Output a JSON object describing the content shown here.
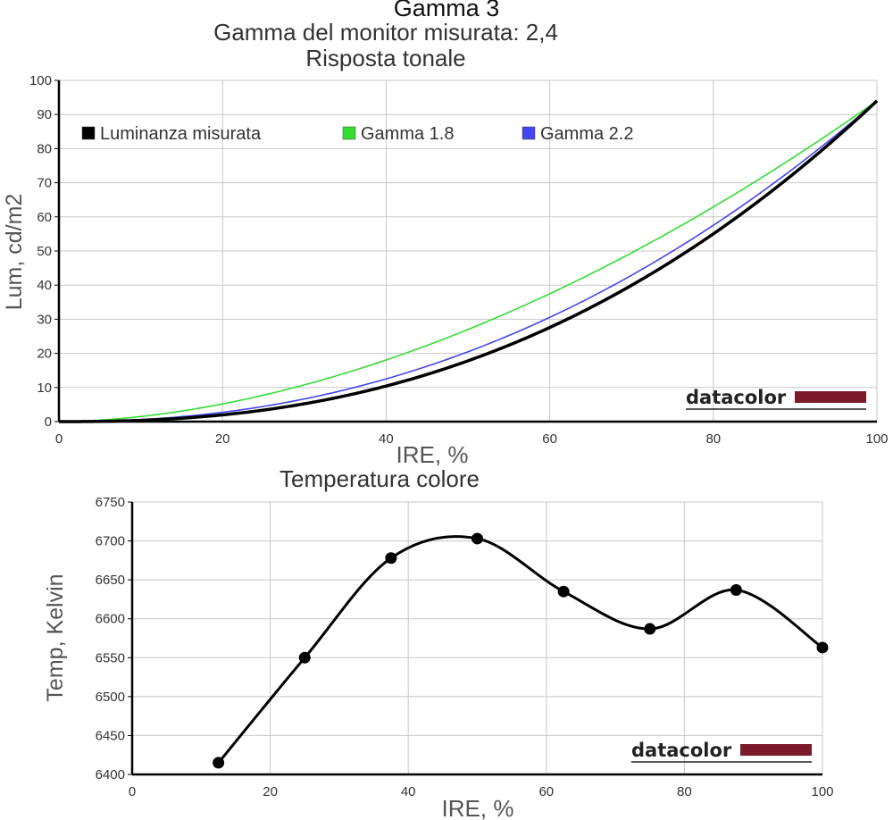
{
  "header": {
    "title": "Gamma 3",
    "subtitle": "Gamma del monitor misurata: 2,4",
    "chart1_title": "Risposta tonale",
    "chart2_title": "Temperatura colore"
  },
  "logo_text": "datacolor",
  "colors": {
    "measured": "#000000",
    "gamma18": "#33dd33",
    "gamma22": "#4444ee",
    "grid": "#c8c8c8",
    "logo_bar": "#7a1a2a"
  },
  "chart_data": [
    {
      "type": "line",
      "title": "Risposta tonale",
      "xlabel": "IRE, %",
      "ylabel": "Lum, cd/m2",
      "xlim": [
        0,
        100
      ],
      "ylim": [
        0,
        100
      ],
      "x_ticks": [
        "0",
        "20",
        "40",
        "60",
        "80",
        "100"
      ],
      "y_ticks": [
        "0",
        "10",
        "20",
        "30",
        "40",
        "50",
        "60",
        "70",
        "80",
        "90",
        "100"
      ],
      "grid": true,
      "legend_position": "top-left",
      "series": [
        {
          "name": "Luminanza misurata",
          "color": "#000000",
          "gamma": 2.4,
          "max": 94,
          "x": [
            0,
            10,
            20,
            30,
            40,
            50,
            60,
            70,
            80,
            90,
            100
          ],
          "y": [
            0,
            0.4,
            1.9,
            5.0,
            10.3,
            17.8,
            27.8,
            40.6,
            56.5,
            75.6,
            94.0
          ]
        },
        {
          "name": "Gamma 1.8",
          "color": "#33dd33",
          "gamma": 1.8,
          "max": 94,
          "x": [
            0,
            10,
            20,
            30,
            40,
            50,
            60,
            70,
            80,
            90,
            100
          ],
          "y": [
            0,
            1.5,
            5.4,
            10.9,
            18.7,
            26.9,
            37.4,
            49.4,
            62.4,
            77.5,
            94.0
          ]
        },
        {
          "name": "Gamma 2.2",
          "color": "#4444ee",
          "gamma": 2.2,
          "max": 94,
          "x": [
            0,
            10,
            20,
            30,
            40,
            50,
            60,
            70,
            80,
            90,
            100
          ],
          "y": [
            0,
            0.6,
            2.7,
            6.4,
            12.0,
            20.4,
            30.4,
            43.2,
            57.7,
            74.1,
            94.0
          ]
        }
      ]
    },
    {
      "type": "line",
      "title": "Temperatura colore",
      "xlabel": "IRE, %",
      "ylabel": "Temp, Kelvin",
      "xlim": [
        0,
        100
      ],
      "ylim": [
        6400,
        6750
      ],
      "x_ticks": [
        "0",
        "20",
        "40",
        "60",
        "80",
        "100"
      ],
      "y_ticks": [
        "6400",
        "6450",
        "6500",
        "6550",
        "6600",
        "6650",
        "6700",
        "6750"
      ],
      "grid": true,
      "series": [
        {
          "color": "#000000",
          "x": [
            12.5,
            25,
            37.5,
            50,
            62.5,
            75,
            87.5,
            100
          ],
          "y": [
            6415,
            6550,
            6678,
            6703,
            6635,
            6587,
            6637,
            6563
          ]
        }
      ]
    }
  ]
}
